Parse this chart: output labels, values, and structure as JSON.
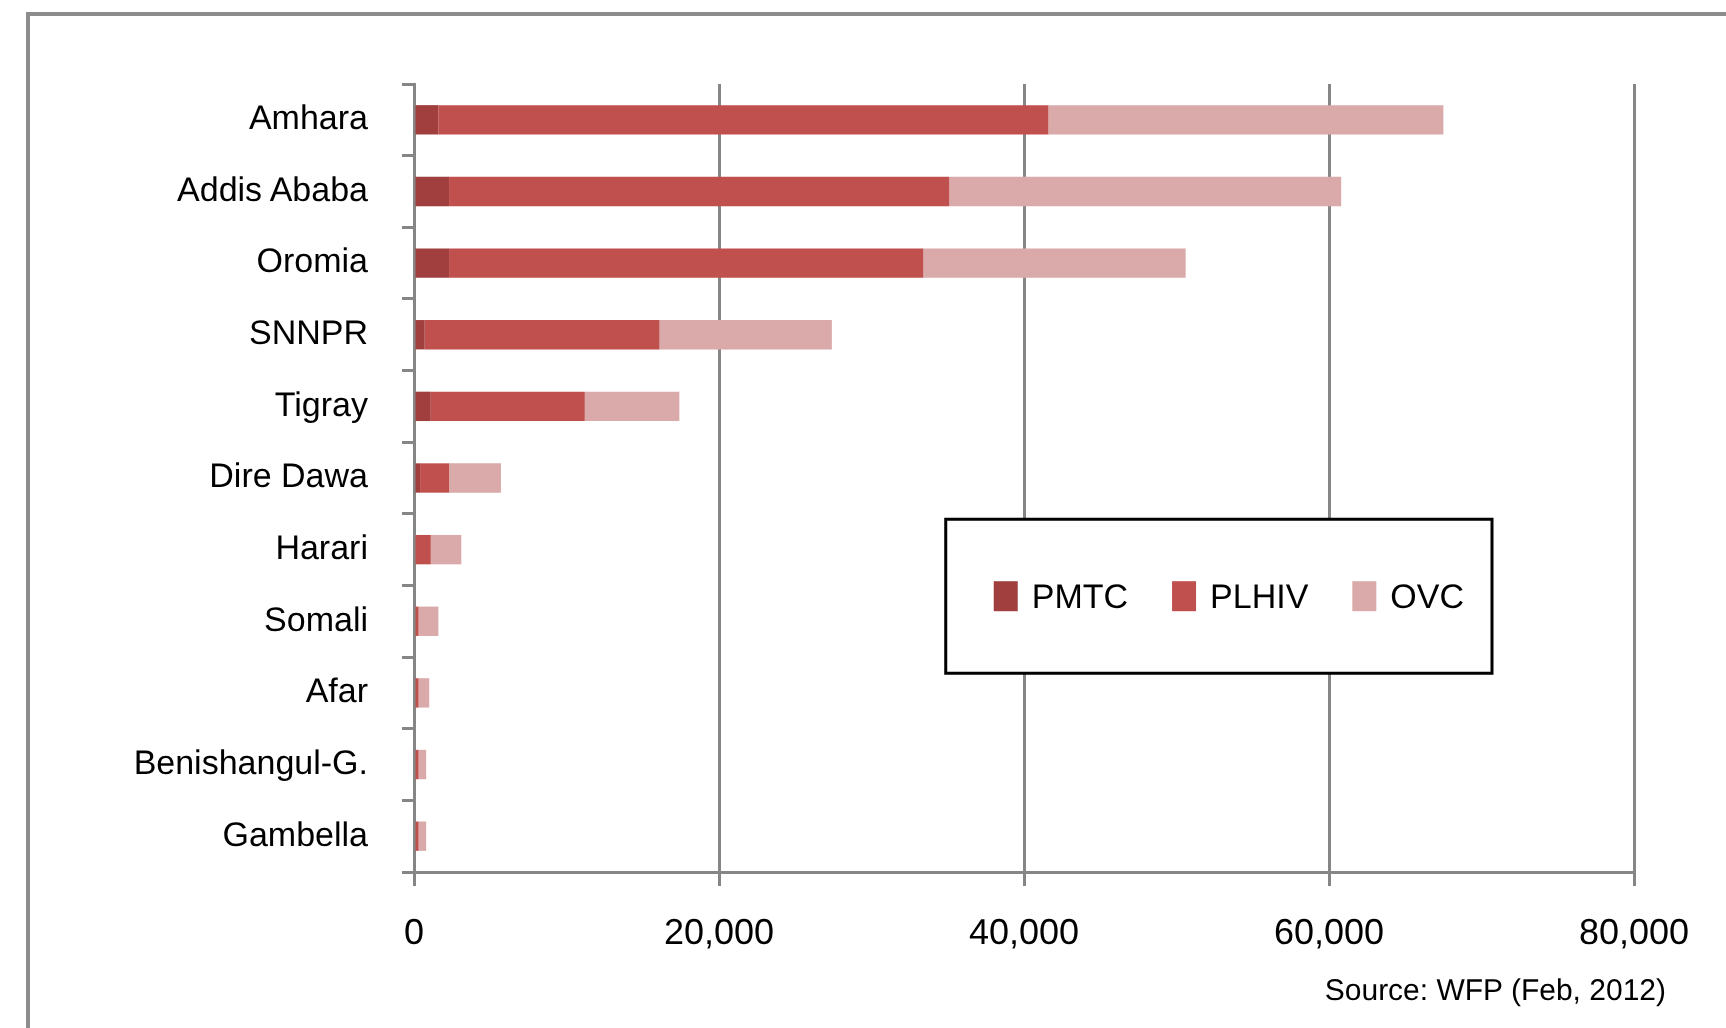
{
  "chart_data": {
    "type": "bar",
    "orientation": "horizontal",
    "stacked": true,
    "categories": [
      "Amhara",
      "Addis Ababa",
      "Oromia",
      "SNNPR",
      "Tigray",
      "Dire Dawa",
      "Harari",
      "Somali",
      "Afar",
      "Benishangul-G.",
      "Gambella"
    ],
    "series": [
      {
        "name": "PMTC",
        "color": "#a03f3e",
        "values": [
          1600,
          2300,
          2300,
          700,
          1100,
          400,
          null,
          null,
          null,
          null,
          null
        ]
      },
      {
        "name": "PLHIV",
        "color": "#c0504d",
        "values": [
          40000,
          32800,
          31100,
          15400,
          10100,
          1900,
          1100,
          300,
          300,
          300,
          300
        ]
      },
      {
        "name": "OVC",
        "color": "#daa9a9",
        "values": [
          25900,
          25700,
          17200,
          11300,
          6200,
          3400,
          2000,
          1300,
          700,
          500,
          500
        ]
      }
    ],
    "xlim": [
      0,
      80000
    ],
    "xticks": [
      0,
      {
        "value": 20000,
        "label": "20,000"
      },
      {
        "value": 40000,
        "label": "40,000"
      },
      {
        "value": 60000,
        "label": "60,000"
      },
      {
        "value": 80000,
        "label": "80,000"
      }
    ],
    "grid": "x",
    "legend": "right",
    "annotations": [
      "Source: WFP (Feb, 2012)"
    ]
  }
}
